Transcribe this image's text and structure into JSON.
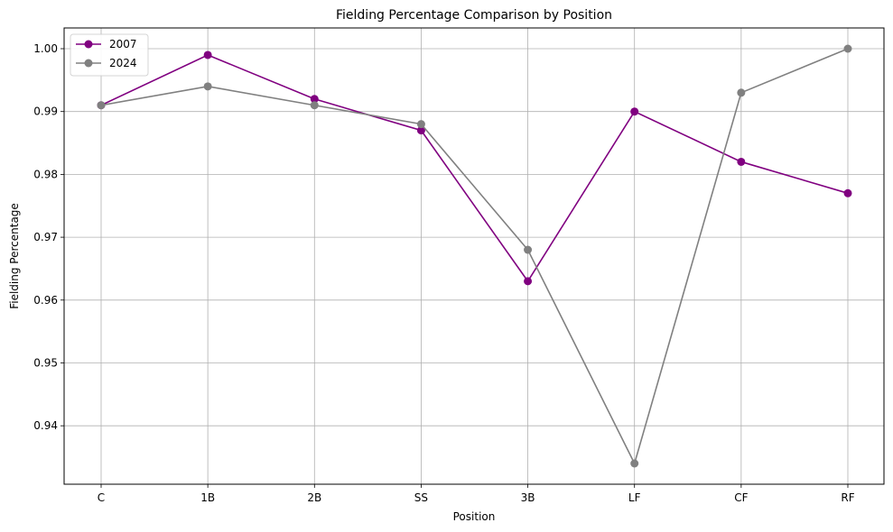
{
  "chart_data": {
    "type": "line",
    "title": "Fielding Percentage Comparison by Position",
    "xlabel": "Position",
    "ylabel": "Fielding Percentage",
    "categories": [
      "C",
      "1B",
      "2B",
      "SS",
      "3B",
      "LF",
      "CF",
      "RF"
    ],
    "ylim": [
      0.9307,
      1.0033
    ],
    "yticks": [
      "0.94",
      "0.95",
      "0.96",
      "0.97",
      "0.98",
      "0.99",
      "1.00"
    ],
    "grid": true,
    "legend_position": "top-left",
    "series": [
      {
        "name": "2007",
        "color": "#800080",
        "values": [
          0.991,
          0.999,
          0.992,
          0.987,
          0.963,
          0.99,
          0.982,
          0.977
        ]
      },
      {
        "name": "2024",
        "color": "#808080",
        "values": [
          0.991,
          0.994,
          0.991,
          0.988,
          0.968,
          0.934,
          0.993,
          1.0
        ]
      }
    ]
  }
}
